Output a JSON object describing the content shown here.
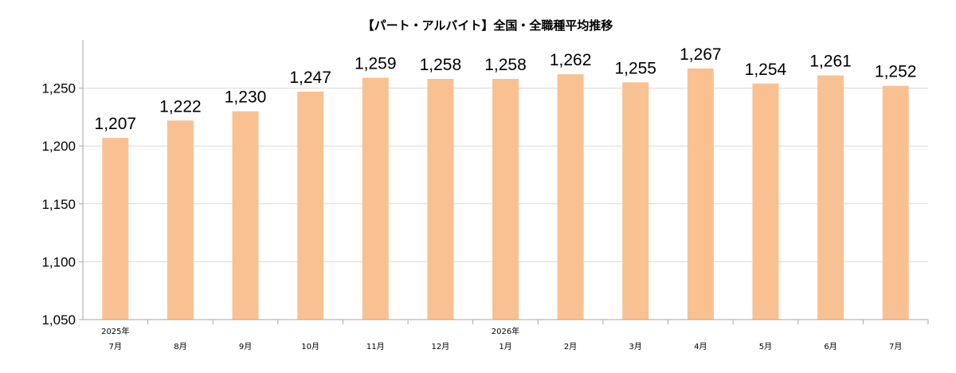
{
  "chart_data": {
    "type": "bar",
    "title": "【パート・アルバイト】全国・全職種平均推移",
    "xlabel": "",
    "ylabel": "",
    "categories": [
      [
        "2025年",
        "7月"
      ],
      [
        "",
        "8月"
      ],
      [
        "",
        "9月"
      ],
      [
        "",
        "10月"
      ],
      [
        "",
        "11月"
      ],
      [
        "",
        "12月"
      ],
      [
        "2026年",
        "1月"
      ],
      [
        "",
        "2月"
      ],
      [
        "",
        "3月"
      ],
      [
        "",
        "4月"
      ],
      [
        "",
        "5月"
      ],
      [
        "",
        "6月"
      ],
      [
        "",
        "7月"
      ]
    ],
    "values": [
      1207,
      1222,
      1230,
      1247,
      1259,
      1258,
      1258,
      1262,
      1255,
      1267,
      1254,
      1261,
      1252
    ],
    "value_labels": [
      "1,207",
      "1,222",
      "1,230",
      "1,247",
      "1,259",
      "1,258",
      "1,258",
      "1,262",
      "1,255",
      "1,267",
      "1,254",
      "1,261",
      "1,252"
    ],
    "ylim": [
      1050,
      1300
    ],
    "yticks": [
      1050,
      1100,
      1150,
      1200,
      1250
    ],
    "ytick_labels": [
      "1,050",
      "1,100",
      "1,150",
      "1,200",
      "1,250"
    ],
    "grid": true,
    "legend": "none",
    "colors": {
      "bar": "#F9C192",
      "grid": "#D9D9D9",
      "axis": "#A6A6A6"
    }
  }
}
